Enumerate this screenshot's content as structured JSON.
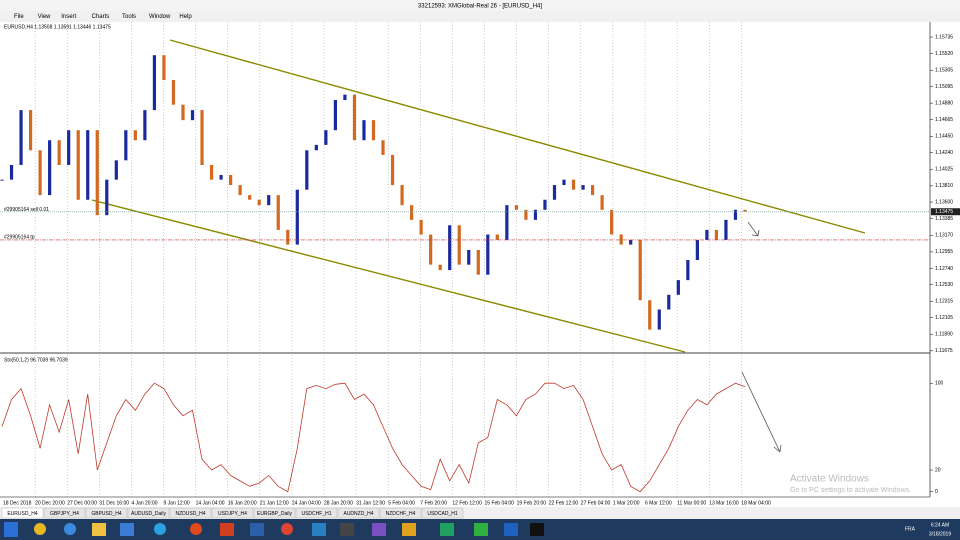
{
  "window": {
    "title": "33212593: XMGlobal-Real 26 - [EURUSD_H4]",
    "menu": [
      "File",
      "View",
      "Insert",
      "Charts",
      "Tools",
      "Window",
      "Help"
    ]
  },
  "tabs": [
    "EURUSD_H4",
    "GBPJPY_H4",
    "GBPUSD_H4",
    "AUDUSD_Daily",
    "NZDUSD_H4",
    "USDJPY_H4",
    "EURGBP_Daily",
    "USDCHF_H1",
    "AUDNZD_H4",
    "NZDCHF_H4",
    "USDCAD_H1"
  ],
  "taskbar": {
    "time": "6:24 AM",
    "date": "3/18/2019",
    "lang": "FRA"
  },
  "watermark": {
    "title": "Activate Windows",
    "text": "Go to PC settings to activate Windows."
  },
  "chart_data": [
    {
      "type": "candlestick",
      "title": "EURUSD,H4  1.13508 1.13591 1.13446 1.13475",
      "closes": [
        1.1389,
        1.1408,
        1.1479,
        1.1427,
        1.1369,
        1.144,
        1.1408,
        1.1453,
        1.1363,
        1.1453,
        1.1343,
        1.1389,
        1.1414,
        1.1453,
        1.144,
        1.1479,
        1.155,
        1.1518,
        1.1486,
        1.1466,
        1.1479,
        1.1408,
        1.1389,
        1.1395,
        1.1382,
        1.1369,
        1.1363,
        1.1356,
        1.1369,
        1.1324,
        1.1305,
        1.1376,
        1.1427,
        1.1434,
        1.1453,
        1.1492,
        1.1499,
        1.144,
        1.1466,
        1.144,
        1.1421,
        1.1382,
        1.1356,
        1.1337,
        1.1318,
        1.1279,
        1.1272,
        1.133,
        1.1279,
        1.1298,
        1.1266,
        1.1318,
        1.1311,
        1.1356,
        1.135,
        1.1337,
        1.135,
        1.1363,
        1.1382,
        1.1389,
        1.1376,
        1.1382,
        1.1369,
        1.135,
        1.1318,
        1.1305,
        1.1311,
        1.1233,
        1.1195,
        1.1221,
        1.124,
        1.1259,
        1.1285,
        1.1311,
        1.1324,
        1.1311,
        1.1337,
        1.135,
        1.13475
      ],
      "up_color": "#1a2a9c",
      "down_color": "#d2691e",
      "ylim": [
        1.1166,
        1.1593
      ],
      "yticks": [
        1.15735,
        {
          "value": 1.1552,
          "label": "1.15520"
        },
        1.15305,
        1.15095,
        {
          "value": 1.1488,
          "label": "1.14880"
        },
        1.14665,
        {
          "value": 1.1445,
          "label": "1.14450"
        },
        {
          "value": 1.1424,
          "label": "1.14240"
        },
        1.14025,
        {
          "value": 1.1381,
          "label": "1.13810"
        },
        {
          "value": 1.136,
          "label": "1.13600"
        },
        1.13385,
        {
          "value": 1.1317,
          "label": "1.13170"
        },
        1.12955,
        {
          "value": 1.1274,
          "label": "1.12740"
        },
        {
          "value": 1.1253,
          "label": "1.12530"
        },
        1.12315,
        1.12105,
        {
          "value": 1.1189,
          "label": "1.11890"
        },
        1.11675
      ],
      "current_price": 1.13475,
      "order_label": "#29905164 sell 0.01",
      "tp_label": "#29905164 tp",
      "tp_level": 1.1311,
      "x_labels": [
        "18 Dec 2018",
        "20 Dec 20:00",
        "27 Dec 00:00",
        "31 Dec 16:00",
        "4 Jan 20:00",
        "9 Jan 12:00",
        "14 Jan 04:00",
        "16 Jan 20:00",
        "21 Jan 12:00",
        "24 Jan 04:00",
        "28 Jan 20:00",
        "31 Jan 12:00",
        "5 Feb 04:00",
        "7 Feb 20:00",
        "12 Feb 12:00",
        "15 Feb 04:00",
        "19 Feb 20:00",
        "22 Feb 12:00",
        "27 Feb 04:00",
        "1 Mar 20:00",
        "6 Mar 12:00",
        "11 Mar 00:00",
        "13 Mar 16:00",
        "18 Mar 04:00"
      ]
    },
    {
      "type": "line",
      "title": "Sto(50,1,2) 96.7039 96.7039",
      "color": "#c0392b",
      "values": [
        60,
        85,
        95,
        70,
        40,
        80,
        55,
        85,
        35,
        90,
        20,
        45,
        70,
        85,
        75,
        90,
        100,
        95,
        80,
        70,
        75,
        30,
        20,
        25,
        15,
        10,
        5,
        8,
        15,
        5,
        0,
        40,
        95,
        98,
        95,
        99,
        100,
        85,
        90,
        80,
        60,
        40,
        25,
        15,
        5,
        2,
        30,
        10,
        25,
        8,
        45,
        50,
        85,
        80,
        70,
        85,
        90,
        100,
        100,
        95,
        98,
        85,
        60,
        35,
        20,
        25,
        5,
        0,
        10,
        25,
        40,
        60,
        75,
        85,
        80,
        90,
        95,
        100,
        96.7039
      ],
      "ylim": [
        -3,
        126
      ],
      "yticks": [
        100,
        20,
        0
      ]
    }
  ]
}
